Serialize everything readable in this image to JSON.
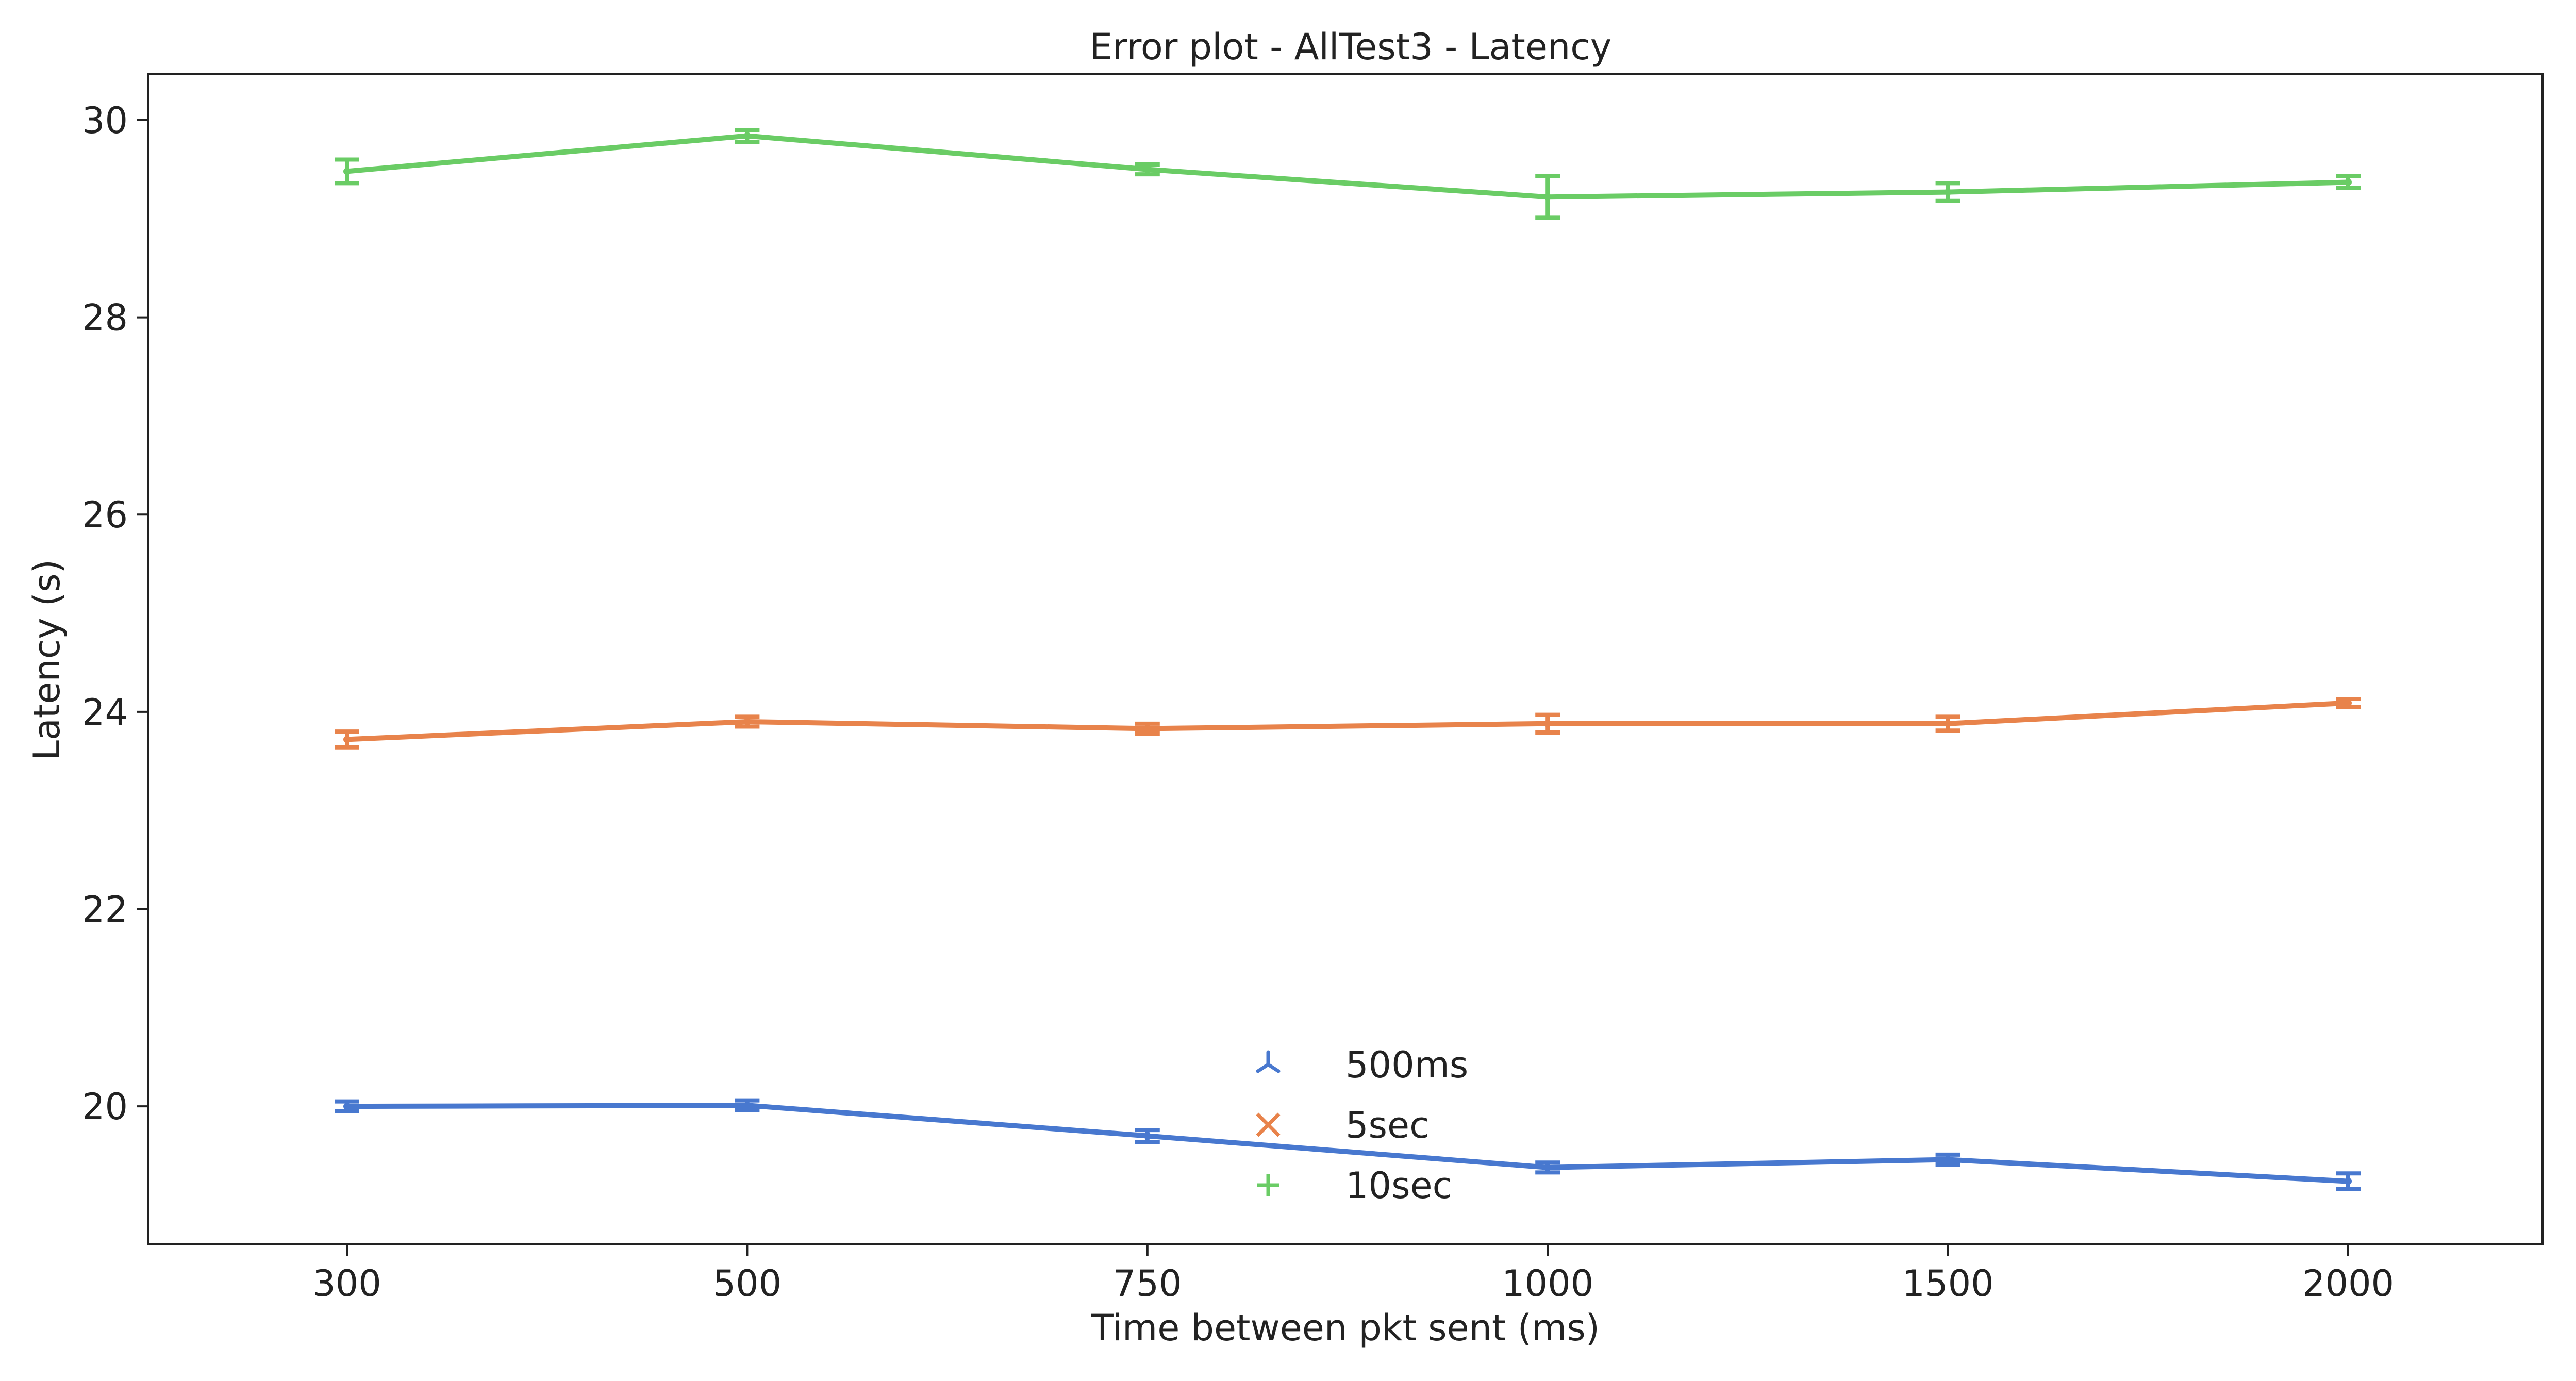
{
  "chart_data": {
    "type": "line",
    "title": "Error plot - AllTest3 - Latency",
    "xlabel": "Time between pkt sent (ms)",
    "ylabel": "Latency (s)",
    "categories": [
      "300",
      "500",
      "750",
      "1000",
      "1500",
      "2000"
    ],
    "ylim": [
      18.6,
      30.47
    ],
    "yticks": [
      20,
      22,
      24,
      26,
      28,
      30
    ],
    "grid": false,
    "legend_position": "lower-center",
    "series": [
      {
        "name": "500ms",
        "color": "#4878cf",
        "marker": "tri_down-icon",
        "values": [
          20.0,
          20.01,
          19.7,
          19.38,
          19.46,
          19.24
        ],
        "errors": [
          0.05,
          0.05,
          0.06,
          0.05,
          0.05,
          0.08
        ]
      },
      {
        "name": "5sec",
        "color": "#e8834b",
        "marker": "x-icon",
        "values": [
          23.72,
          23.9,
          23.83,
          23.88,
          23.88,
          24.09
        ],
        "errors": [
          0.08,
          0.05,
          0.05,
          0.09,
          0.07,
          0.04
        ]
      },
      {
        "name": "10sec",
        "color": "#6acc65",
        "marker": "plus-icon",
        "values": [
          29.48,
          29.84,
          29.5,
          29.22,
          29.27,
          29.37
        ],
        "errors": [
          0.12,
          0.06,
          0.05,
          0.21,
          0.09,
          0.06
        ]
      }
    ]
  }
}
